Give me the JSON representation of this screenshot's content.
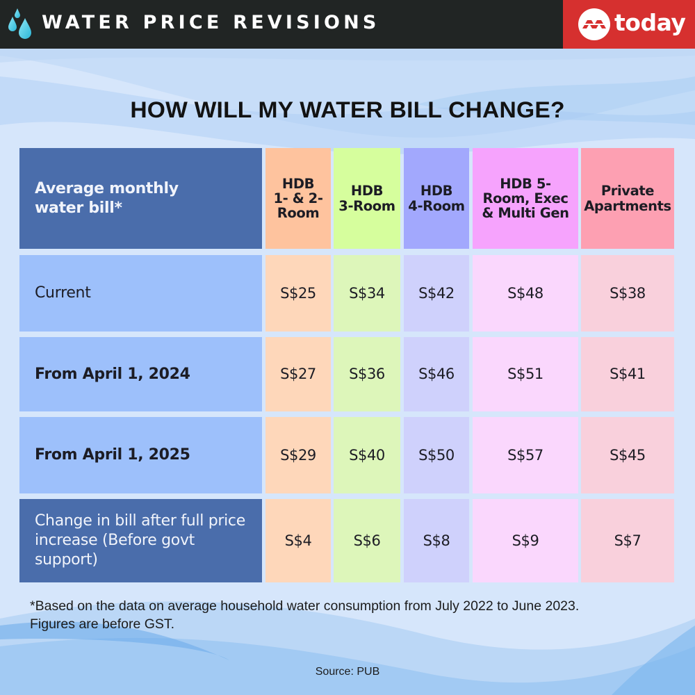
{
  "header": {
    "title": "WATER PRICE REVISIONS",
    "brand": "today",
    "icons": {
      "left": "water-drops-icon",
      "brand": "mediacorp-logo-icon"
    },
    "colors": {
      "bar": "#212524",
      "brand_bg": "#d6302f"
    }
  },
  "headline": "HOW WILL MY WATER BILL CHANGE?",
  "chart_data": {
    "type": "table",
    "title": "HOW WILL MY WATER BILL CHANGE?",
    "corner_label": "Average monthly water bill*",
    "columns": [
      {
        "label": "HDB 1- & 2-Room",
        "lines": [
          "HDB",
          "1- & 2-",
          "Room"
        ],
        "header_color": "#fec39e",
        "cell_color": "#fed7ba"
      },
      {
        "label": "HDB 3-Room",
        "lines": [
          "HDB",
          "3-Room"
        ],
        "header_color": "#d6fe9d",
        "cell_color": "#ddf6ba"
      },
      {
        "label": "HDB 4-Room",
        "lines": [
          "HDB",
          "4-Room"
        ],
        "header_color": "#a2a8fd",
        "cell_color": "#cfd1fc"
      },
      {
        "label": "HDB 5-Room, Exec & Multi Gen",
        "lines": [
          "HDB 5-",
          "Room, Exec",
          "& Multi Gen"
        ],
        "header_color": "#f6a3fd",
        "cell_color": "#fad7fd"
      },
      {
        "label": "Private Apartments",
        "lines": [
          "Private",
          "Apartments"
        ],
        "header_color": "#fda0b2",
        "cell_color": "#f9d0dc"
      }
    ],
    "rows": [
      {
        "label": "Current",
        "bold": false,
        "style": "light",
        "values": [
          "S$25",
          "S$34",
          "S$42",
          "S$48",
          "S$38"
        ],
        "numeric": [
          25,
          34,
          42,
          48,
          38
        ]
      },
      {
        "label": "From April 1, 2024",
        "bold": true,
        "style": "light",
        "values": [
          "S$27",
          "S$36",
          "S$46",
          "S$51",
          "S$41"
        ],
        "numeric": [
          27,
          36,
          46,
          51,
          41
        ]
      },
      {
        "label": "From April 1, 2025",
        "bold": true,
        "style": "light",
        "values": [
          "S$29",
          "S$40",
          "S$50",
          "S$57",
          "S$45"
        ],
        "numeric": [
          29,
          40,
          50,
          57,
          45
        ]
      },
      {
        "label": "Change in bill after full price increase (Before govt support)",
        "bold": false,
        "style": "dark",
        "values": [
          "S$4",
          "S$6",
          "S$8",
          "S$9",
          "S$7"
        ],
        "numeric": [
          4,
          6,
          8,
          9,
          7
        ]
      }
    ],
    "currency": "S$",
    "colors": {
      "label_dark": "#4a6dab",
      "label_light": "#9dc0fb"
    }
  },
  "footnote": {
    "line1": "*Based on the data on average household water consumption from July 2022 to June 2023.",
    "line2": "Figures are before GST."
  },
  "source": "Source: PUB"
}
